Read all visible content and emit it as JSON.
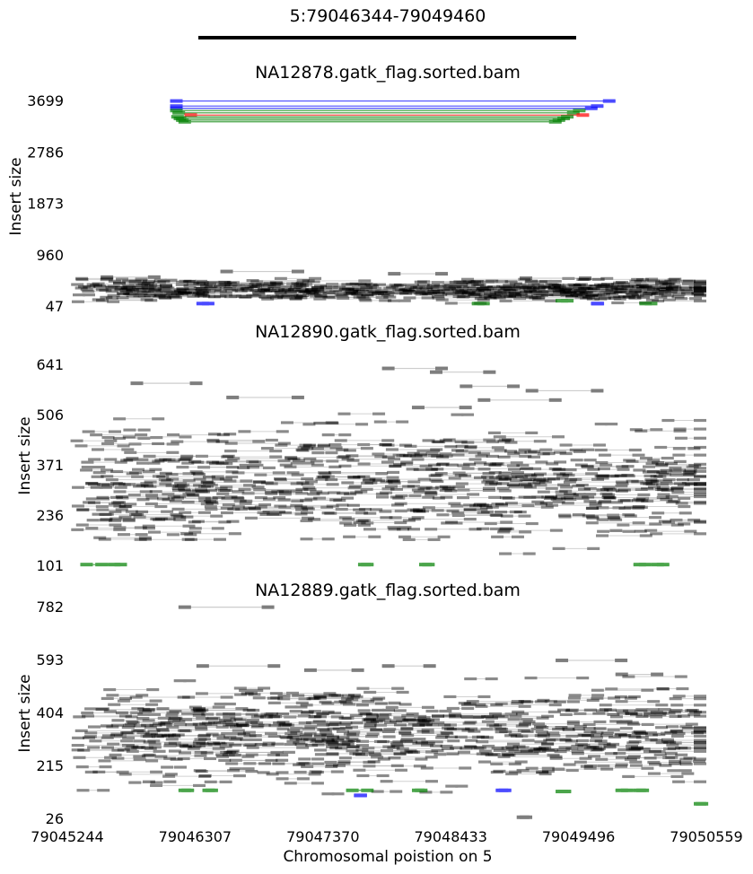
{
  "title": "5:79046344-79049460",
  "xlabel": "Chromosomal poistion on 5",
  "ylabel": "Insert size",
  "x_ticks": [
    "79045244",
    "79046307",
    "79047370",
    "79048433",
    "79049496",
    "79050559"
  ],
  "colors": {
    "normal": "#000000",
    "deletion": "#008000",
    "duplication": "#0000ff",
    "inversion": "#ff0000",
    "read_link": "#9a9a9a"
  },
  "chart_data": [
    {
      "type": "scatter",
      "title": "NA12878.gatk_flag.sorted.bam",
      "ylabel": "Insert size",
      "xlim": [
        79045244,
        79050559
      ],
      "ylim": [
        47,
        3699
      ],
      "ytick_labels": [
        "47",
        "960",
        "1873",
        "2786",
        "3699"
      ],
      "dense_band": {
        "center": 330,
        "spread": 90,
        "count": 420
      },
      "pairs": [
        {
          "start": 79046080,
          "end": 79049800,
          "size": 3690,
          "color": "duplication"
        },
        {
          "start": 79046080,
          "end": 79049700,
          "size": 3600,
          "color": "duplication"
        },
        {
          "start": 79046080,
          "end": 79049650,
          "size": 3560,
          "color": "duplication"
        },
        {
          "start": 79046080,
          "end": 79049550,
          "size": 3520,
          "color": "deletion"
        },
        {
          "start": 79046100,
          "end": 79049500,
          "size": 3480,
          "color": "deletion"
        },
        {
          "start": 79046200,
          "end": 79049580,
          "size": 3440,
          "color": "inversion"
        },
        {
          "start": 79046090,
          "end": 79049450,
          "size": 3410,
          "color": "deletion"
        },
        {
          "start": 79046110,
          "end": 79049420,
          "size": 3380,
          "color": "deletion"
        },
        {
          "start": 79046130,
          "end": 79049380,
          "size": 3350,
          "color": "deletion"
        },
        {
          "start": 79046150,
          "end": 79049350,
          "size": 3320,
          "color": "deletion"
        },
        {
          "start": 79046500,
          "end": 79047200,
          "size": 660,
          "color": "normal"
        },
        {
          "start": 79047900,
          "end": 79048400,
          "size": 620,
          "color": "normal"
        },
        {
          "start": 79045500,
          "end": 79046000,
          "size": 560,
          "color": "normal"
        },
        {
          "start": 79049000,
          "end": 79049600,
          "size": 540,
          "color": "normal"
        },
        {
          "start": 79046300,
          "end": 79046450,
          "size": 90,
          "color": "duplication"
        },
        {
          "start": 79049600,
          "end": 79049700,
          "size": 90,
          "color": "duplication"
        },
        {
          "start": 79048600,
          "end": 79048750,
          "size": 90,
          "color": "deletion"
        },
        {
          "start": 79049300,
          "end": 79049450,
          "size": 140,
          "color": "deletion"
        },
        {
          "start": 79050000,
          "end": 79050150,
          "size": 90,
          "color": "deletion"
        }
      ]
    },
    {
      "type": "scatter",
      "title": "NA12890.gatk_flag.sorted.bam",
      "ylabel": "Insert size",
      "xlim": [
        79045244,
        79050559
      ],
      "ylim": [
        101,
        641
      ],
      "ytick_labels": [
        "101",
        "236",
        "371",
        "506",
        "641"
      ],
      "dense_band": {
        "center": 320,
        "spread": 75,
        "count": 520
      },
      "pairs": [
        {
          "start": 79047850,
          "end": 79048400,
          "size": 630,
          "color": "normal"
        },
        {
          "start": 79048250,
          "end": 79048800,
          "size": 620,
          "color": "normal"
        },
        {
          "start": 79045750,
          "end": 79046350,
          "size": 590,
          "color": "normal"
        },
        {
          "start": 79048500,
          "end": 79049000,
          "size": 582,
          "color": "normal"
        },
        {
          "start": 79046550,
          "end": 79047200,
          "size": 552,
          "color": "normal"
        },
        {
          "start": 79048650,
          "end": 79049350,
          "size": 545,
          "color": "normal"
        },
        {
          "start": 79049050,
          "end": 79049700,
          "size": 570,
          "color": "normal"
        },
        {
          "start": 79048100,
          "end": 79048600,
          "size": 525,
          "color": "normal"
        },
        {
          "start": 79045330,
          "end": 79045560,
          "size": 103,
          "color": "deletion"
        },
        {
          "start": 79045560,
          "end": 79045720,
          "size": 103,
          "color": "deletion"
        },
        {
          "start": 79047650,
          "end": 79047780,
          "size": 103,
          "color": "deletion"
        },
        {
          "start": 79048160,
          "end": 79048290,
          "size": 103,
          "color": "deletion"
        },
        {
          "start": 79049950,
          "end": 79050100,
          "size": 103,
          "color": "deletion"
        },
        {
          "start": 79050100,
          "end": 79050250,
          "size": 103,
          "color": "deletion"
        }
      ]
    },
    {
      "type": "scatter",
      "title": "NA12889.gatk_flag.sorted.bam",
      "ylabel": "Insert size",
      "xlim": [
        79045244,
        79050559
      ],
      "ylim": [
        26,
        782
      ],
      "xtick_labels": [
        "79045244",
        "79046307",
        "79047370",
        "79048433",
        "79049496",
        "79050559"
      ],
      "ytick_labels": [
        "26",
        "215",
        "404",
        "593",
        "782"
      ],
      "dense_band": {
        "center": 330,
        "spread": 80,
        "count": 520
      },
      "pairs": [
        {
          "start": 79046150,
          "end": 79046950,
          "size": 780,
          "color": "normal"
        },
        {
          "start": 79049300,
          "end": 79049900,
          "size": 590,
          "color": "normal"
        },
        {
          "start": 79046300,
          "end": 79047000,
          "size": 570,
          "color": "normal"
        },
        {
          "start": 79047850,
          "end": 79048300,
          "size": 570,
          "color": "normal"
        },
        {
          "start": 79047200,
          "end": 79047700,
          "size": 555,
          "color": "normal"
        },
        {
          "start": 79049800,
          "end": 79050200,
          "size": 540,
          "color": "normal"
        },
        {
          "start": 79046150,
          "end": 79046280,
          "size": 126,
          "color": "deletion"
        },
        {
          "start": 79046350,
          "end": 79046480,
          "size": 126,
          "color": "deletion"
        },
        {
          "start": 79047550,
          "end": 79047780,
          "size": 126,
          "color": "deletion"
        },
        {
          "start": 79048100,
          "end": 79048230,
          "size": 126,
          "color": "deletion"
        },
        {
          "start": 79049300,
          "end": 79049430,
          "size": 122,
          "color": "deletion"
        },
        {
          "start": 79049800,
          "end": 79049950,
          "size": 126,
          "color": "deletion"
        },
        {
          "start": 79049950,
          "end": 79050080,
          "size": 126,
          "color": "deletion"
        },
        {
          "start": 79050470,
          "end": 79050559,
          "size": 78,
          "color": "deletion"
        },
        {
          "start": 79048800,
          "end": 79048930,
          "size": 126,
          "color": "duplication"
        },
        {
          "start": 79047620,
          "end": 79047720,
          "size": 108,
          "color": "duplication"
        },
        {
          "start": 79049000,
          "end": 79049080,
          "size": 30,
          "color": "normal"
        }
      ]
    }
  ]
}
